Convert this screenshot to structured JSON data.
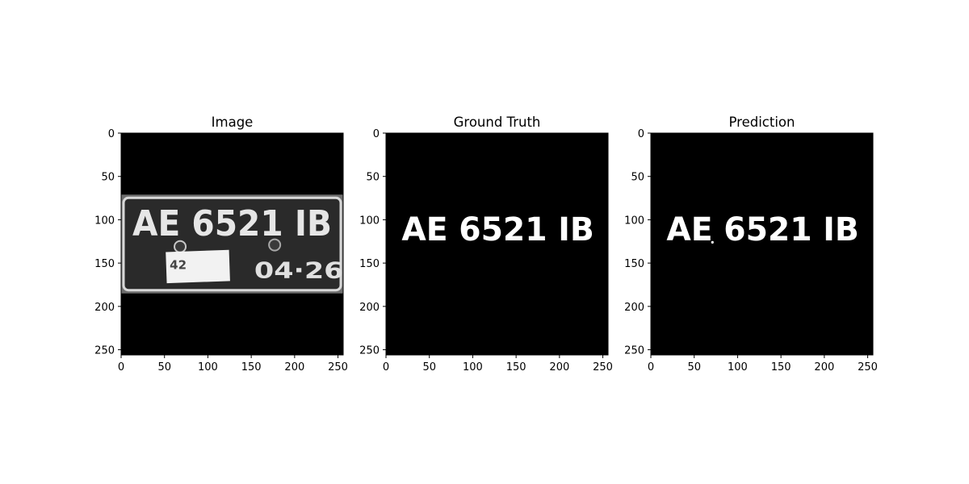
{
  "figure": {
    "panels": [
      {
        "title": "Image"
      },
      {
        "title": "Ground Truth"
      },
      {
        "title": "Prediction"
      }
    ]
  },
  "chart_data": [
    {
      "type": "heatmap",
      "title": "Image",
      "xlim": [
        0,
        256
      ],
      "ylim": [
        256,
        0
      ],
      "xticks": [
        0,
        50,
        100,
        150,
        200,
        250
      ],
      "yticks": [
        0,
        50,
        100,
        150,
        200,
        250
      ],
      "plate_text": "AE 6521 IB",
      "plate_date": "04·26",
      "sticker_text": "42",
      "colormap": "gray"
    },
    {
      "type": "heatmap",
      "title": "Ground Truth",
      "xlim": [
        0,
        256
      ],
      "ylim": [
        256,
        0
      ],
      "xticks": [
        0,
        50,
        100,
        150,
        200,
        250
      ],
      "yticks": [
        0,
        50,
        100,
        150,
        200,
        250
      ],
      "mask_text": "AE 6521 IB",
      "colormap": "gray"
    },
    {
      "type": "heatmap",
      "title": "Prediction",
      "xlim": [
        0,
        256
      ],
      "ylim": [
        256,
        0
      ],
      "xticks": [
        0,
        50,
        100,
        150,
        200,
        250
      ],
      "yticks": [
        0,
        50,
        100,
        150,
        200,
        250
      ],
      "mask_text": "AE 6521 IB",
      "colormap": "gray"
    }
  ]
}
